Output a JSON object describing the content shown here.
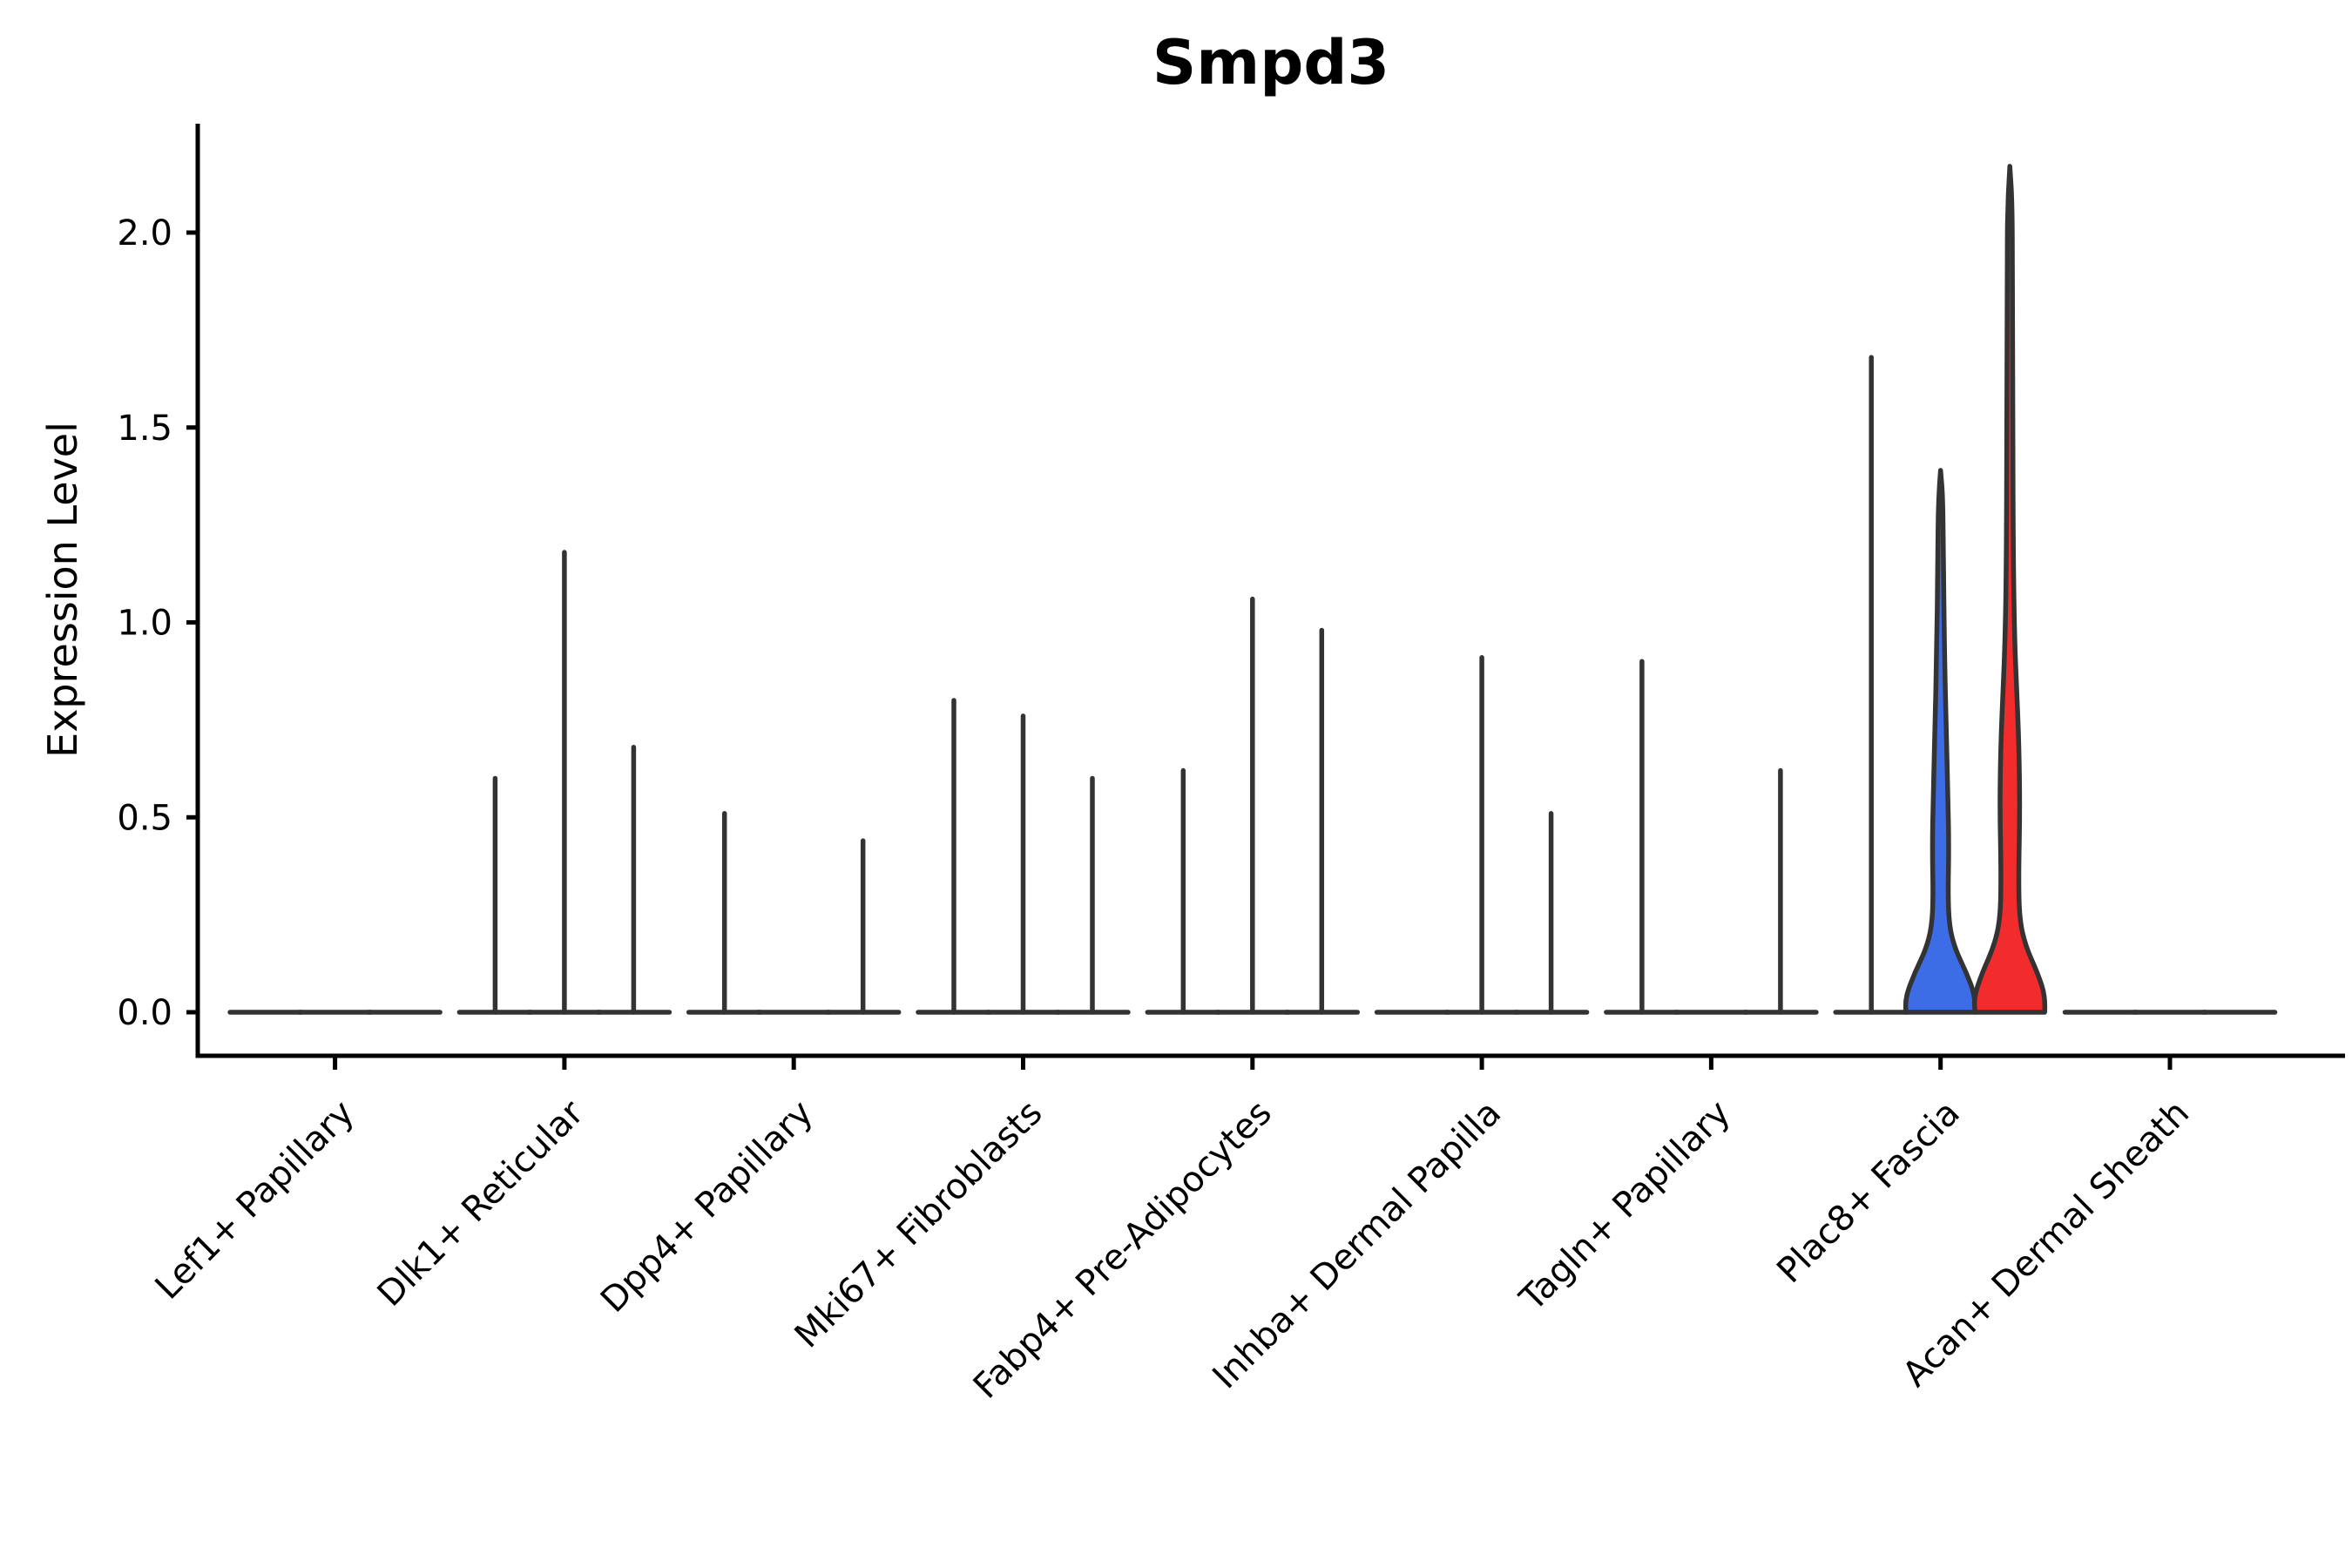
{
  "chart_data": {
    "type": "violin",
    "title": "Smpd3",
    "ylabel": "Expression Level",
    "xlabel": "",
    "grid": false,
    "legend": "none",
    "ytick_labels": [
      "0.0",
      "0.5",
      "1.0",
      "1.5",
      "2.0"
    ],
    "ytick_values": [
      0.0,
      0.5,
      1.0,
      1.5,
      2.0
    ],
    "ylim": [
      -0.112,
      2.28
    ],
    "violins_per_category": 3,
    "edge_color": "#333333",
    "axis_color": "#000000",
    "background_color": "#ffffff",
    "highlight_fill_blue": "#3D6CE7",
    "highlight_fill_red": "#F22C2C",
    "categories": [
      "Lef1+ Papillary",
      "Dlk1+ Reticular",
      "Dpp4+ Papillary",
      "Mki67+ Fibroblasts",
      "Fabp4+ Pre-Adipocytes",
      "Inhba+ Dermal Papilla",
      "Tagln+ Papillary",
      "Plac8+ Fascia",
      "Acan+ Dermal Sheath"
    ],
    "groups": [
      {
        "category": "Lef1+ Papillary",
        "violins": [
          {
            "max": 0
          },
          {
            "max": 0
          },
          {
            "max": 0
          }
        ]
      },
      {
        "category": "Dlk1+ Reticular",
        "violins": [
          {
            "max": 0.6
          },
          {
            "max": 1.18
          },
          {
            "max": 0.68
          }
        ]
      },
      {
        "category": "Dpp4+ Papillary",
        "violins": [
          {
            "max": 0.51
          },
          {
            "max": 0
          },
          {
            "max": 0.44
          }
        ]
      },
      {
        "category": "Mki67+ Fibroblasts",
        "violins": [
          {
            "max": 0.8
          },
          {
            "max": 0.76
          },
          {
            "max": 0.6
          }
        ]
      },
      {
        "category": "Fabp4+ Pre-Adipocytes",
        "violins": [
          {
            "max": 0.62
          },
          {
            "max": 1.06
          },
          {
            "max": 0.98
          }
        ]
      },
      {
        "category": "Inhba+ Dermal Papilla",
        "violins": [
          {
            "max": 0
          },
          {
            "max": 0.91
          },
          {
            "max": 0.51
          }
        ]
      },
      {
        "category": "Tagln+ Papillary",
        "violins": [
          {
            "max": 0.9
          },
          {
            "max": 0
          },
          {
            "max": 0.62
          }
        ]
      },
      {
        "category": "Plac8+ Fascia",
        "violins": [
          {
            "max": 1.68
          },
          {
            "max": 1.39,
            "fill": "#3D6CE7",
            "profile": [
              [
                0,
                40
              ],
              [
                0.04,
                40
              ],
              [
                0.1,
                30
              ],
              [
                0.16,
                17
              ],
              [
                0.22,
                10
              ],
              [
                0.3,
                8.5
              ],
              [
                0.42,
                9.5
              ],
              [
                0.55,
                8.5
              ],
              [
                0.72,
                6.5
              ],
              [
                0.92,
                4.5
              ],
              [
                1.15,
                3.2
              ],
              [
                1.32,
                2.6
              ],
              [
                1.39,
                0
              ]
            ]
          },
          {
            "max": 2.17,
            "fill": "#F22C2C",
            "profile": [
              [
                0,
                40
              ],
              [
                0.04,
                41
              ],
              [
                0.1,
                32
              ],
              [
                0.17,
                18
              ],
              [
                0.24,
                11
              ],
              [
                0.35,
                10
              ],
              [
                0.52,
                11.5
              ],
              [
                0.68,
                10.5
              ],
              [
                0.82,
                8
              ],
              [
                0.95,
                5.5
              ],
              [
                1.15,
                4
              ],
              [
                1.5,
                3.4
              ],
              [
                1.9,
                3
              ],
              [
                2.08,
                2.6
              ],
              [
                2.17,
                0
              ]
            ]
          }
        ]
      },
      {
        "category": "Acan+ Dermal Sheath",
        "violins": [
          {
            "max": 0
          },
          {
            "max": 0
          },
          {
            "max": 0
          }
        ]
      }
    ]
  }
}
